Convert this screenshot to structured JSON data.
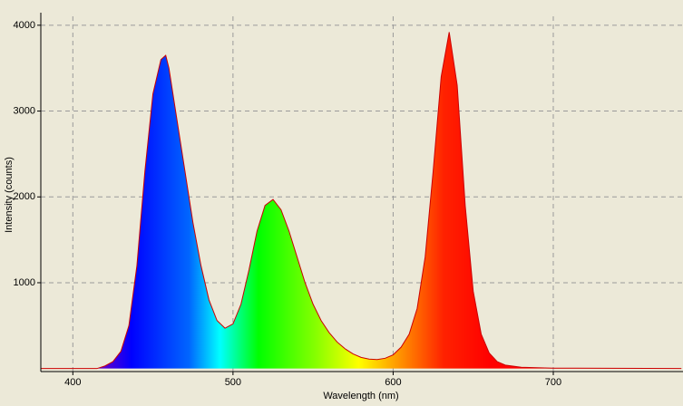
{
  "chart_data": {
    "type": "area",
    "x_label": "Wavelength (nm)",
    "y_label": "Intensity (counts)",
    "x": [
      380,
      415,
      420,
      425,
      430,
      435,
      440,
      445,
      450,
      455,
      458,
      460,
      465,
      470,
      475,
      480,
      485,
      490,
      495,
      500,
      505,
      510,
      515,
      520,
      525,
      530,
      535,
      540,
      545,
      550,
      555,
      560,
      565,
      570,
      575,
      580,
      585,
      590,
      595,
      600,
      605,
      610,
      615,
      620,
      625,
      630,
      635,
      640,
      645,
      650,
      655,
      660,
      665,
      670,
      680,
      700,
      780
    ],
    "values": [
      0,
      0,
      30,
      80,
      200,
      500,
      1200,
      2300,
      3200,
      3600,
      3650,
      3500,
      2900,
      2300,
      1700,
      1200,
      800,
      560,
      470,
      520,
      750,
      1150,
      1600,
      1900,
      1970,
      1850,
      1600,
      1300,
      1000,
      750,
      560,
      420,
      310,
      230,
      170,
      130,
      110,
      105,
      120,
      160,
      250,
      400,
      700,
      1300,
      2300,
      3400,
      3920,
      3300,
      1900,
      900,
      400,
      180,
      80,
      40,
      15,
      5,
      0
    ],
    "color": "#cc0000",
    "xlim": [
      380,
      781
    ],
    "ylim": [
      -35,
      4104
    ],
    "xticks": [
      400,
      500,
      600,
      700
    ],
    "yticks": [
      1000,
      2000,
      3000,
      4000
    ],
    "grid": true
  }
}
